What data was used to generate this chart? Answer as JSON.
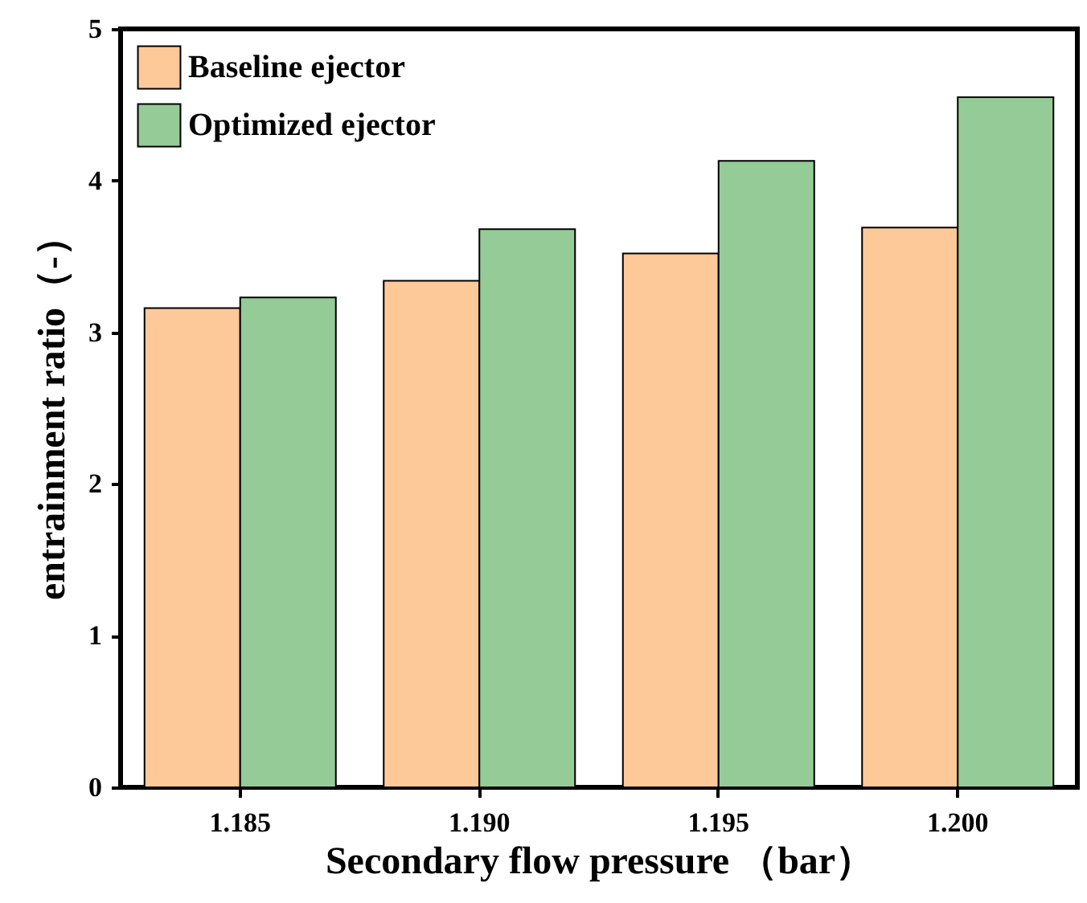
{
  "chart_data": {
    "type": "bar",
    "xlabel": "Secondary flow pressure （bar）",
    "ylabel": "entrainment ratio（-）",
    "categories": [
      "1.185",
      "1.190",
      "1.195",
      "1.200"
    ],
    "series": [
      {
        "name": "Baseline ejector",
        "color": "#fdc998",
        "values": [
          3.16,
          3.34,
          3.52,
          3.69
        ]
      },
      {
        "name": "Optimized ejector",
        "color": "#94cb96",
        "values": [
          3.23,
          3.68,
          4.13,
          4.55
        ]
      }
    ],
    "ylim": [
      0,
      5
    ],
    "yticks": [
      0,
      1,
      2,
      3,
      4,
      5
    ],
    "legend": "top left",
    "grid": false
  }
}
